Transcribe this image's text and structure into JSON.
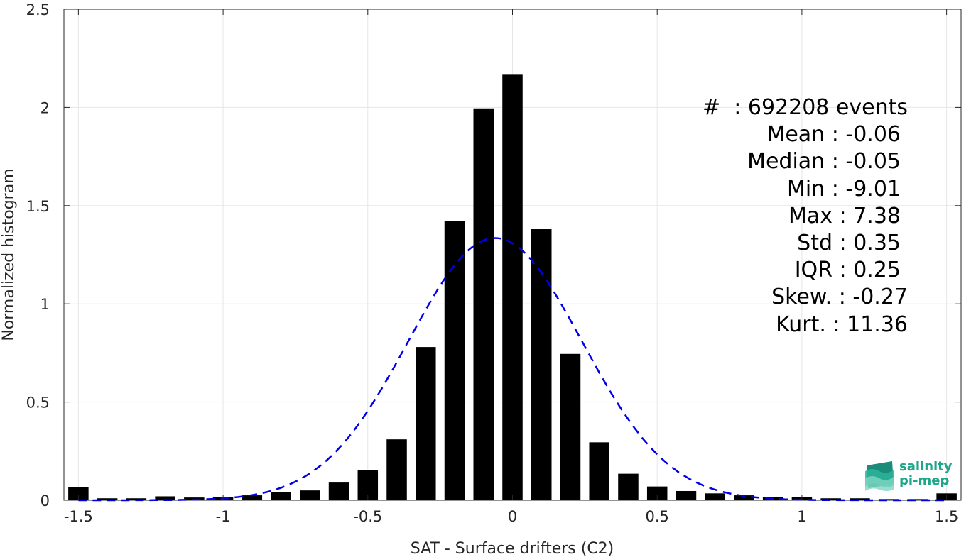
{
  "chart_data": {
    "type": "bar",
    "xlabel": "SAT - Surface drifters (C2)",
    "ylabel": "Normalized histogram",
    "xlim": [
      -1.55,
      1.55
    ],
    "ylim": [
      0,
      2.5
    ],
    "xticks": [
      -1.5,
      -1,
      -0.5,
      0,
      0.5,
      1,
      1.5
    ],
    "xtick_labels": [
      "-1.5",
      "-1",
      "-0.5",
      "0",
      "0.5",
      "1",
      "1.5"
    ],
    "yticks": [
      0,
      0.5,
      1,
      1.5,
      2,
      2.5
    ],
    "ytick_labels": [
      "0",
      "0.5",
      "1",
      "1.5",
      "2",
      "2.5"
    ],
    "grid": true,
    "bar_color": "#000000",
    "bars": {
      "x": [
        -1.5,
        -1.4,
        -1.3,
        -1.2,
        -1.1,
        -1.0,
        -0.9,
        -0.8,
        -0.7,
        -0.6,
        -0.5,
        -0.4,
        -0.3,
        -0.2,
        -0.1,
        0.0,
        0.1,
        0.2,
        0.3,
        0.4,
        0.5,
        0.6,
        0.7,
        0.8,
        0.9,
        1.0,
        1.1,
        1.2,
        1.3,
        1.4,
        1.5
      ],
      "values": [
        0.068,
        0.01,
        0.01,
        0.02,
        0.014,
        0.015,
        0.025,
        0.043,
        0.05,
        0.09,
        0.155,
        0.31,
        0.78,
        1.42,
        1.995,
        2.17,
        1.38,
        0.745,
        0.295,
        0.135,
        0.07,
        0.047,
        0.035,
        0.025,
        0.015,
        0.015,
        0.01,
        0.01,
        0.006,
        0.006,
        0.035
      ]
    },
    "fit": {
      "style": "dashed",
      "color": "#0000e6",
      "mean": -0.06,
      "std": 0.3,
      "peak": 1.335
    },
    "stats": [
      "#  : 692208 events",
      "Mean : -0.06",
      "Median : -0.05",
      "Min : -9.01",
      "Max : 7.38",
      "Std : 0.35",
      "IQR : 0.25",
      "Skew. : -0.27",
      "Kurt. : 11.36"
    ],
    "logo_lines": [
      "salinity",
      "pi-mep"
    ]
  }
}
